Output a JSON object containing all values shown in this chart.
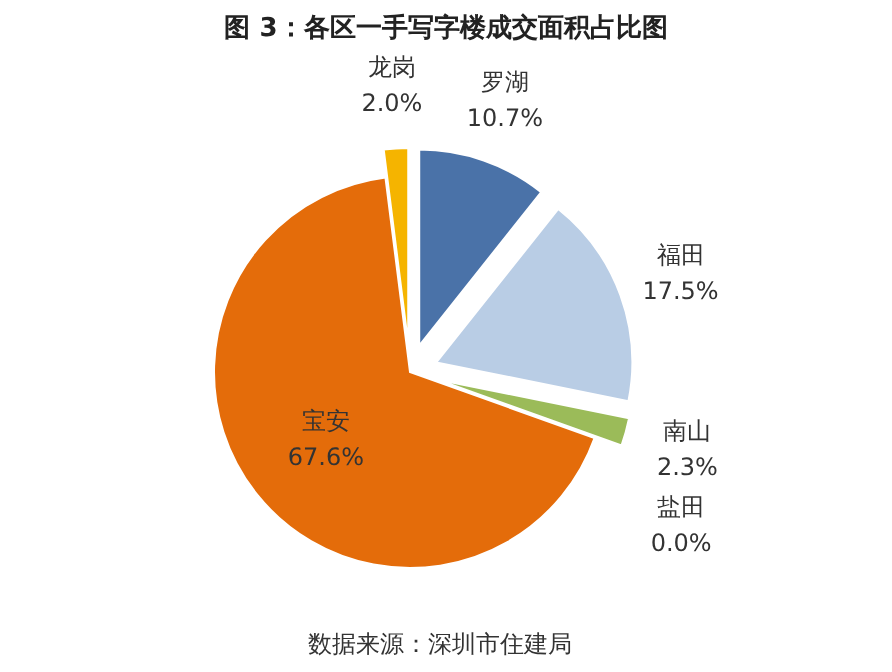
{
  "chart_data": {
    "type": "pie",
    "title": "图 3：各区一手写字楼成交面积占比图",
    "categories": [
      "罗湖",
      "福田",
      "南山",
      "盐田",
      "宝安",
      "龙岗"
    ],
    "values": [
      10.7,
      17.5,
      2.3,
      0.0,
      67.6,
      2.0
    ],
    "value_labels": [
      "10.7%",
      "17.5%",
      "2.3%",
      "0.0%",
      "67.6%",
      "2.0%"
    ],
    "colors": [
      "#4a72a8",
      "#b9cde5",
      "#9bbb59",
      "#7f7f7f",
      "#e46c0a",
      "#f5b400"
    ],
    "annotations": [
      "数据来源：深圳市住建局"
    ]
  }
}
